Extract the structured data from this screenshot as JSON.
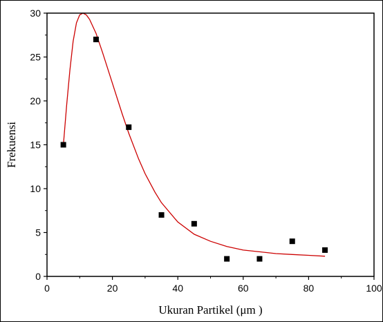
{
  "chart_data": {
    "type": "scatter",
    "title": "",
    "xlabel": "Ukuran Partikel (μm )",
    "ylabel": "Frekuensi",
    "xlim": [
      0,
      100
    ],
    "ylim": [
      0,
      30
    ],
    "x_ticks": [
      "0",
      "20",
      "40",
      "60",
      "80",
      "100"
    ],
    "y_ticks": [
      "0",
      "5",
      "10",
      "15",
      "20",
      "25",
      "30"
    ],
    "grid": false,
    "legend": "none",
    "series": [
      {
        "kind": "points",
        "marker": "square",
        "color": "#000000",
        "points": [
          {
            "x": 5,
            "y": 15
          },
          {
            "x": 15,
            "y": 27
          },
          {
            "x": 25,
            "y": 17
          },
          {
            "x": 35,
            "y": 7
          },
          {
            "x": 45,
            "y": 6
          },
          {
            "x": 55,
            "y": 2
          },
          {
            "x": 65,
            "y": 2
          },
          {
            "x": 75,
            "y": 4
          },
          {
            "x": 85,
            "y": 3
          }
        ]
      },
      {
        "kind": "fit-curve",
        "color": "#cc0000",
        "points": [
          {
            "x": 5,
            "y": 15
          },
          {
            "x": 6,
            "y": 19.5
          },
          {
            "x": 7,
            "y": 23.5
          },
          {
            "x": 8,
            "y": 26.8
          },
          {
            "x": 9,
            "y": 28.9
          },
          {
            "x": 10,
            "y": 29.8
          },
          {
            "x": 11,
            "y": 30
          },
          {
            "x": 12,
            "y": 29.8
          },
          {
            "x": 13,
            "y": 29.3
          },
          {
            "x": 15,
            "y": 27.7
          },
          {
            "x": 17,
            "y": 25.5
          },
          {
            "x": 20,
            "y": 22
          },
          {
            "x": 23,
            "y": 18.5
          },
          {
            "x": 25,
            "y": 16.3
          },
          {
            "x": 28,
            "y": 13.4
          },
          {
            "x": 30,
            "y": 11.7
          },
          {
            "x": 33,
            "y": 9.6
          },
          {
            "x": 35,
            "y": 8.4
          },
          {
            "x": 40,
            "y": 6.2
          },
          {
            "x": 45,
            "y": 4.8
          },
          {
            "x": 50,
            "y": 4
          },
          {
            "x": 55,
            "y": 3.4
          },
          {
            "x": 60,
            "y": 3.0
          },
          {
            "x": 65,
            "y": 2.8
          },
          {
            "x": 70,
            "y": 2.6
          },
          {
            "x": 75,
            "y": 2.5
          },
          {
            "x": 80,
            "y": 2.4
          },
          {
            "x": 85,
            "y": 2.3
          }
        ]
      }
    ]
  }
}
